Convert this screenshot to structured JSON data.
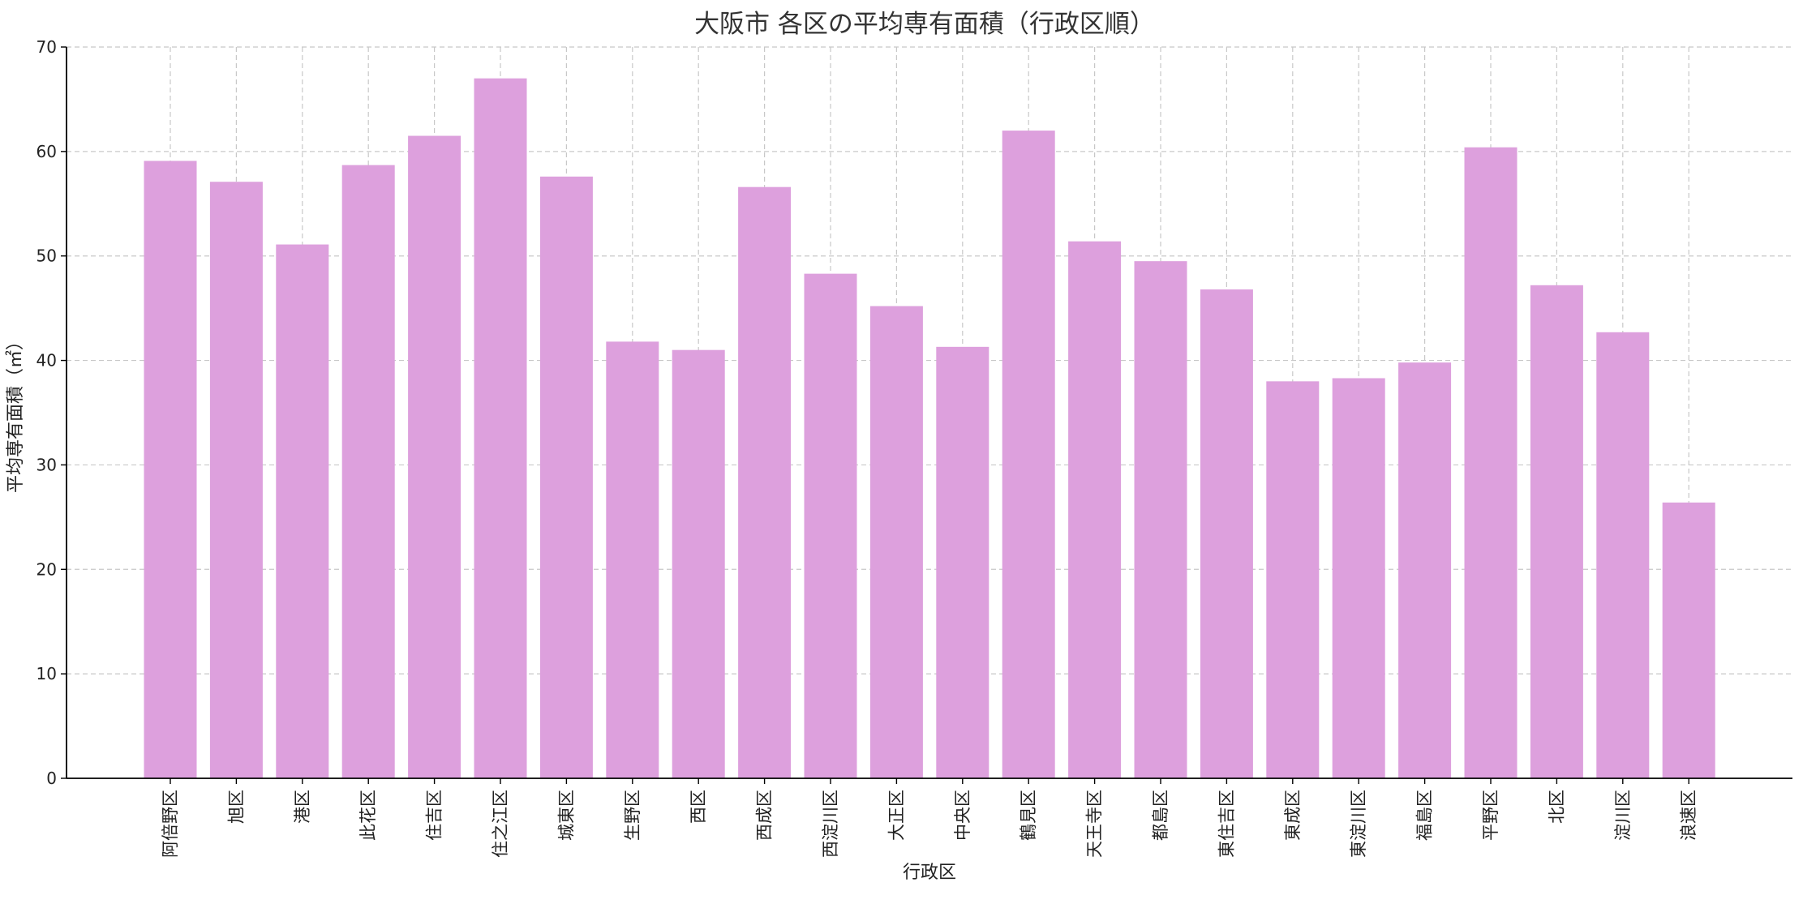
{
  "chart_data": {
    "type": "bar",
    "title": "大阪市 各区の平均専有面積（行政区順）",
    "xlabel": "行政区",
    "ylabel": "平均専有面積（㎡）",
    "ylim": [
      0,
      70
    ],
    "yticks": [
      0,
      10,
      20,
      30,
      40,
      50,
      60,
      70
    ],
    "grid": true,
    "bar_color": "#dda0dd",
    "categories": [
      "阿倍野区",
      "旭区",
      "港区",
      "此花区",
      "住吉区",
      "住之江区",
      "城東区",
      "生野区",
      "西区",
      "西成区",
      "西淀川区",
      "大正区",
      "中央区",
      "鶴見区",
      "天王寺区",
      "都島区",
      "東住吉区",
      "東成区",
      "東淀川区",
      "福島区",
      "平野区",
      "北区",
      "淀川区",
      "浪速区"
    ],
    "values": [
      59.1,
      57.1,
      51.1,
      58.7,
      61.5,
      67.0,
      57.6,
      41.8,
      41.0,
      56.6,
      48.3,
      45.2,
      41.3,
      62.0,
      51.4,
      49.5,
      46.8,
      38.0,
      38.3,
      39.8,
      60.4,
      47.2,
      42.7,
      26.4
    ]
  }
}
